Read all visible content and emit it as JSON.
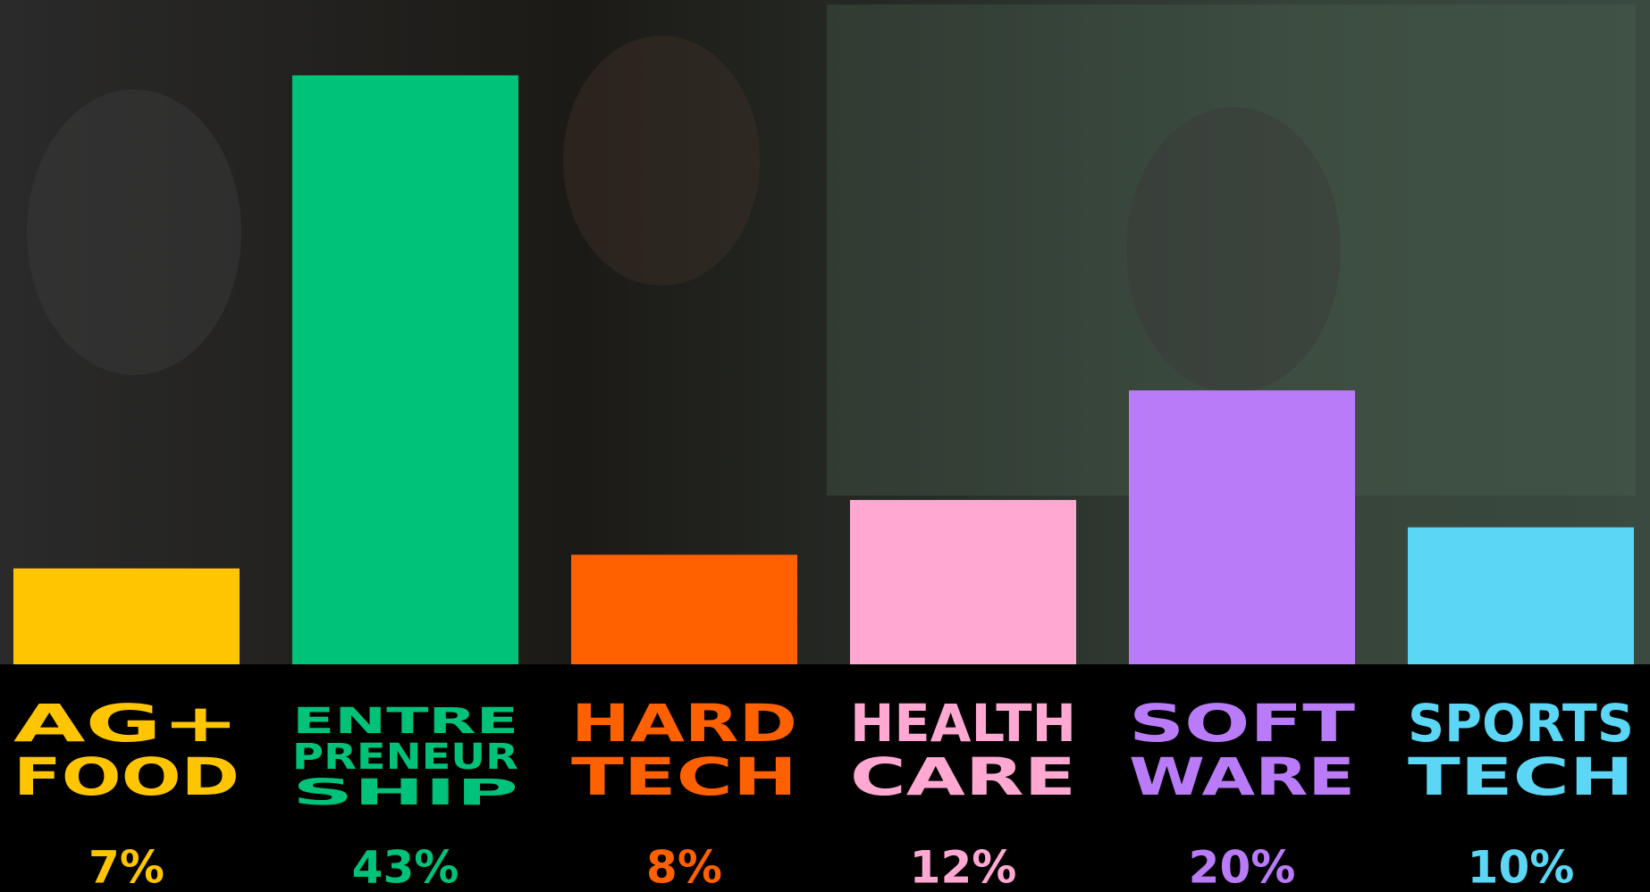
{
  "chart_data": {
    "type": "bar",
    "categories": [
      [
        "AG+",
        "FOOD"
      ],
      [
        "ENTRE",
        "PRENEUR",
        "SHIP"
      ],
      [
        "HARD",
        "TECH"
      ],
      [
        "HEALTH",
        "CARE"
      ],
      [
        "SOFT",
        "WARE"
      ],
      [
        "SPORTS",
        "TECH"
      ]
    ],
    "series": [
      {
        "colors": [
          "#ffc500",
          "#00c278",
          "#ff6000",
          "#ffa9d2",
          "#b97bf7",
          "#5cd6f5"
        ],
        "values": [
          7,
          43,
          8,
          12,
          20,
          10
        ],
        "value_labels": [
          "7%",
          "43%",
          "8%",
          "12%",
          "20%",
          "10%"
        ]
      }
    ],
    "ylim": [
      0,
      48.5
    ]
  }
}
